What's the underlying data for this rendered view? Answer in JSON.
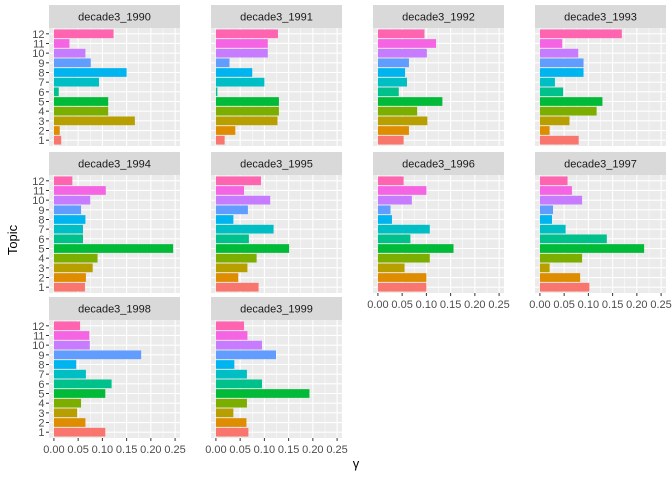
{
  "chart_data": {
    "type": "bar",
    "orientation": "horizontal",
    "xlabel": "γ",
    "ylabel": "Topic",
    "xlim": [
      0,
      0.25
    ],
    "x_ticks": [
      "0.00",
      "0.05",
      "0.10",
      "0.15",
      "0.20",
      "0.25"
    ],
    "categories": [
      "1",
      "2",
      "3",
      "4",
      "5",
      "6",
      "7",
      "8",
      "9",
      "10",
      "11",
      "12"
    ],
    "topic_colors": [
      "#F8766D",
      "#DE8C00",
      "#B79F00",
      "#7CAE00",
      "#00BA38",
      "#00C08B",
      "#00BFC4",
      "#00B4F0",
      "#619CFF",
      "#C77CFF",
      "#F564E3",
      "#FF64B0"
    ],
    "grid": true,
    "panel_background": "#EBEBEB",
    "strip_background": "#D9D9D9",
    "facets": [
      {
        "name": "decade3_1990",
        "values": [
          0.015,
          0.012,
          0.167,
          0.112,
          0.112,
          0.01,
          0.093,
          0.15,
          0.076,
          0.065,
          0.032,
          0.123
        ]
      },
      {
        "name": "decade3_1991",
        "values": [
          0.018,
          0.04,
          0.127,
          0.13,
          0.13,
          0.003,
          0.1,
          0.075,
          0.028,
          0.107,
          0.107,
          0.128
        ]
      },
      {
        "name": "decade3_1992",
        "values": [
          0.053,
          0.064,
          0.102,
          0.081,
          0.133,
          0.043,
          0.06,
          0.056,
          0.064,
          0.101,
          0.12,
          0.096
        ]
      },
      {
        "name": "decade3_1993",
        "values": [
          0.08,
          0.02,
          0.061,
          0.117,
          0.129,
          0.048,
          0.031,
          0.09,
          0.09,
          0.079,
          0.046,
          0.169
        ]
      },
      {
        "name": "decade3_1994",
        "values": [
          0.064,
          0.066,
          0.08,
          0.09,
          0.246,
          0.06,
          0.06,
          0.065,
          0.056,
          0.075,
          0.107,
          0.038
        ]
      },
      {
        "name": "decade3_1995",
        "values": [
          0.088,
          0.046,
          0.065,
          0.084,
          0.151,
          0.068,
          0.119,
          0.036,
          0.066,
          0.112,
          0.058,
          0.093
        ]
      },
      {
        "name": "decade3_1996",
        "values": [
          0.1,
          0.1,
          0.055,
          0.107,
          0.156,
          0.067,
          0.107,
          0.029,
          0.026,
          0.07,
          0.1,
          0.053
        ]
      },
      {
        "name": "decade3_1997",
        "values": [
          0.102,
          0.083,
          0.02,
          0.087,
          0.215,
          0.138,
          0.053,
          0.025,
          0.027,
          0.087,
          0.066,
          0.057
        ]
      },
      {
        "name": "decade3_1998",
        "values": [
          0.106,
          0.065,
          0.048,
          0.056,
          0.106,
          0.119,
          0.066,
          0.046,
          0.18,
          0.074,
          0.073,
          0.054
        ]
      },
      {
        "name": "decade3_1999",
        "values": [
          0.067,
          0.063,
          0.036,
          0.064,
          0.193,
          0.095,
          0.064,
          0.038,
          0.124,
          0.095,
          0.065,
          0.058
        ]
      }
    ]
  }
}
